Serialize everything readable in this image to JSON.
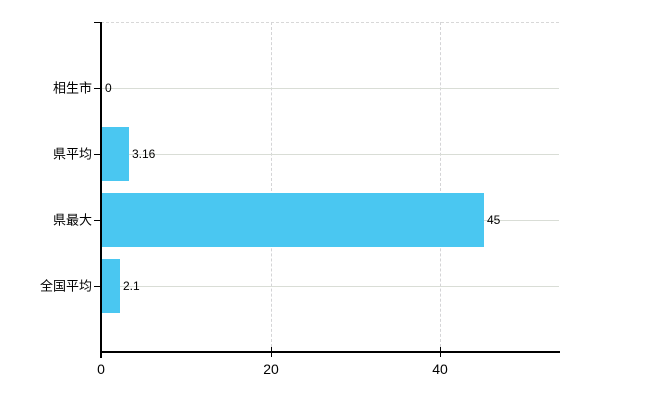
{
  "chart_data": {
    "type": "bar",
    "orientation": "horizontal",
    "title": "",
    "xlabel": "",
    "ylabel": "",
    "categories": [
      "相生市",
      "県平均",
      "県最大",
      "全国平均"
    ],
    "values": [
      0,
      3.16,
      45,
      2.1
    ],
    "value_labels": [
      "0",
      "3.16",
      "45",
      "2.1"
    ],
    "x_ticks": [
      0,
      20,
      40
    ],
    "x_tick_labels": [
      "0",
      "20",
      "40"
    ],
    "xlim": [
      0,
      54
    ],
    "grid": "on",
    "legend_position": "none",
    "bar_color": "#4AC7F1",
    "grid_color": "#D9D9D9",
    "axis_color": "#000000",
    "text_color": "#000000",
    "background_color": "#FFFFFF"
  }
}
